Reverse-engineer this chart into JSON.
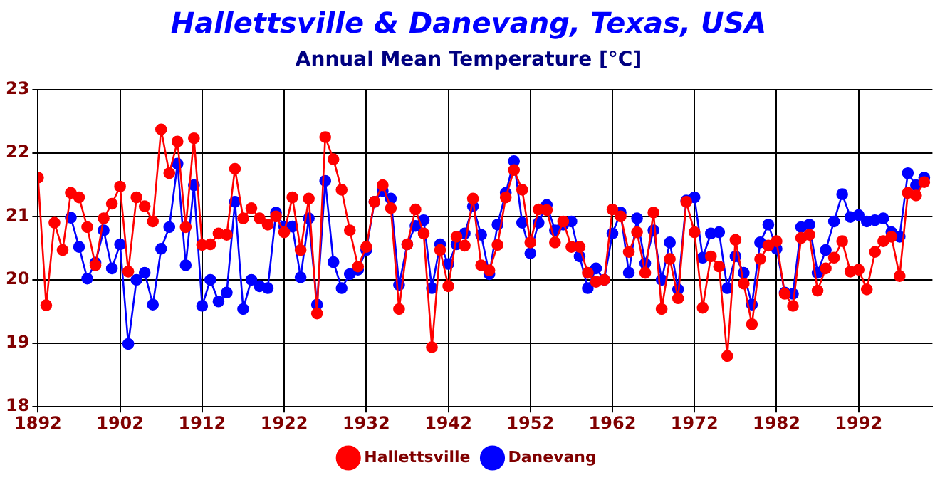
{
  "chart_data": {
    "type": "line",
    "title": "Hallettsville & Danevang, Texas, USA",
    "subtitle": "Annual Mean Temperature [°C]",
    "x": [
      1892,
      1893,
      1894,
      1895,
      1896,
      1897,
      1898,
      1899,
      1900,
      1901,
      1902,
      1903,
      1904,
      1905,
      1906,
      1907,
      1908,
      1909,
      1910,
      1911,
      1912,
      1913,
      1914,
      1915,
      1916,
      1917,
      1918,
      1919,
      1920,
      1921,
      1922,
      1923,
      1924,
      1925,
      1926,
      1927,
      1928,
      1929,
      1930,
      1931,
      1932,
      1933,
      1934,
      1935,
      1936,
      1937,
      1938,
      1939,
      1940,
      1941,
      1942,
      1943,
      1944,
      1945,
      1946,
      1947,
      1948,
      1949,
      1950,
      1951,
      1952,
      1953,
      1954,
      1955,
      1956,
      1957,
      1958,
      1959,
      1960,
      1961,
      1962,
      1963,
      1964,
      1965,
      1966,
      1967,
      1968,
      1969,
      1970,
      1971,
      1972,
      1973,
      1974,
      1975,
      1976,
      1977,
      1978,
      1979,
      1980,
      1981,
      1982,
      1983,
      1984,
      1985,
      1986,
      1987,
      1988,
      1989,
      1990,
      1991,
      1992,
      1993,
      1994,
      1995,
      1996,
      1997,
      1998,
      1999,
      2000
    ],
    "series": [
      {
        "name": "Hallettsville",
        "color": "#ff0000",
        "values": [
          21.61,
          19.6,
          20.9,
          20.47,
          21.37,
          21.3,
          20.83,
          20.23,
          20.97,
          21.2,
          21.47,
          20.13,
          21.3,
          21.16,
          20.92,
          22.37,
          21.68,
          22.18,
          20.83,
          22.23,
          20.55,
          20.56,
          20.73,
          20.71,
          21.75,
          20.97,
          21.13,
          20.97,
          20.87,
          21.0,
          20.75,
          21.3,
          20.47,
          21.28,
          19.47,
          22.25,
          21.9,
          21.42,
          20.78,
          20.21,
          20.52,
          21.23,
          21.49,
          21.13,
          19.54,
          20.56,
          21.11,
          20.73,
          18.94,
          20.47,
          19.9,
          20.68,
          20.54,
          21.28,
          20.23,
          20.15,
          20.55,
          21.3,
          21.73,
          21.42,
          20.59,
          21.11,
          21.1,
          20.59,
          20.92,
          20.52,
          20.52,
          20.11,
          19.97,
          20.0,
          21.11,
          21.0,
          20.44,
          20.75,
          20.11,
          21.06,
          19.54,
          20.33,
          19.71,
          21.23,
          20.75,
          19.56,
          20.37,
          20.21,
          18.8,
          20.63,
          19.94,
          19.3,
          20.33,
          20.54,
          20.61,
          19.78,
          19.59,
          20.66,
          20.71,
          19.83,
          20.18,
          20.35,
          20.61,
          20.13,
          20.16,
          19.85,
          20.44,
          20.61,
          20.68,
          20.06,
          21.37,
          21.33,
          21.54
        ]
      },
      {
        "name": "Danevang",
        "color": "#0000ff",
        "values": [
          null,
          null,
          null,
          null,
          20.98,
          20.52,
          20.02,
          20.27,
          20.78,
          20.18,
          20.56,
          18.99,
          20.0,
          20.11,
          19.61,
          20.49,
          20.83,
          21.83,
          20.23,
          21.49,
          19.59,
          20.0,
          19.66,
          19.8,
          21.23,
          19.54,
          20.0,
          19.9,
          19.87,
          21.06,
          20.84,
          20.84,
          20.04,
          20.97,
          19.61,
          21.56,
          20.28,
          19.87,
          20.09,
          20.16,
          20.47,
          21.23,
          21.4,
          21.28,
          19.92,
          20.56,
          20.85,
          20.94,
          19.87,
          20.56,
          20.25,
          20.56,
          20.73,
          21.16,
          20.71,
          20.09,
          20.87,
          21.37,
          21.87,
          20.9,
          20.42,
          20.9,
          21.18,
          20.78,
          20.87,
          20.92,
          20.37,
          19.87,
          20.18,
          20.0,
          20.73,
          21.06,
          20.11,
          20.97,
          20.26,
          20.78,
          20.0,
          20.59,
          19.85,
          21.25,
          21.3,
          20.35,
          20.73,
          20.75,
          19.87,
          20.37,
          20.11,
          19.61,
          20.59,
          20.87,
          20.49,
          19.8,
          19.78,
          20.83,
          20.87,
          20.11,
          20.47,
          20.92,
          21.35,
          20.99,
          21.02,
          20.92,
          20.94,
          20.97,
          20.75,
          20.68,
          21.68,
          21.49,
          21.61
        ]
      }
    ],
    "xlim": [
      1892,
      2001
    ],
    "xticks": [
      1892,
      1902,
      1912,
      1922,
      1932,
      1942,
      1952,
      1962,
      1972,
      1982,
      1992
    ],
    "ylim": [
      18,
      23
    ],
    "yticks": [
      18,
      19,
      20,
      21,
      22,
      23
    ],
    "grid": true,
    "legend": "bottom",
    "marker": "circle",
    "line_style": "solid"
  }
}
